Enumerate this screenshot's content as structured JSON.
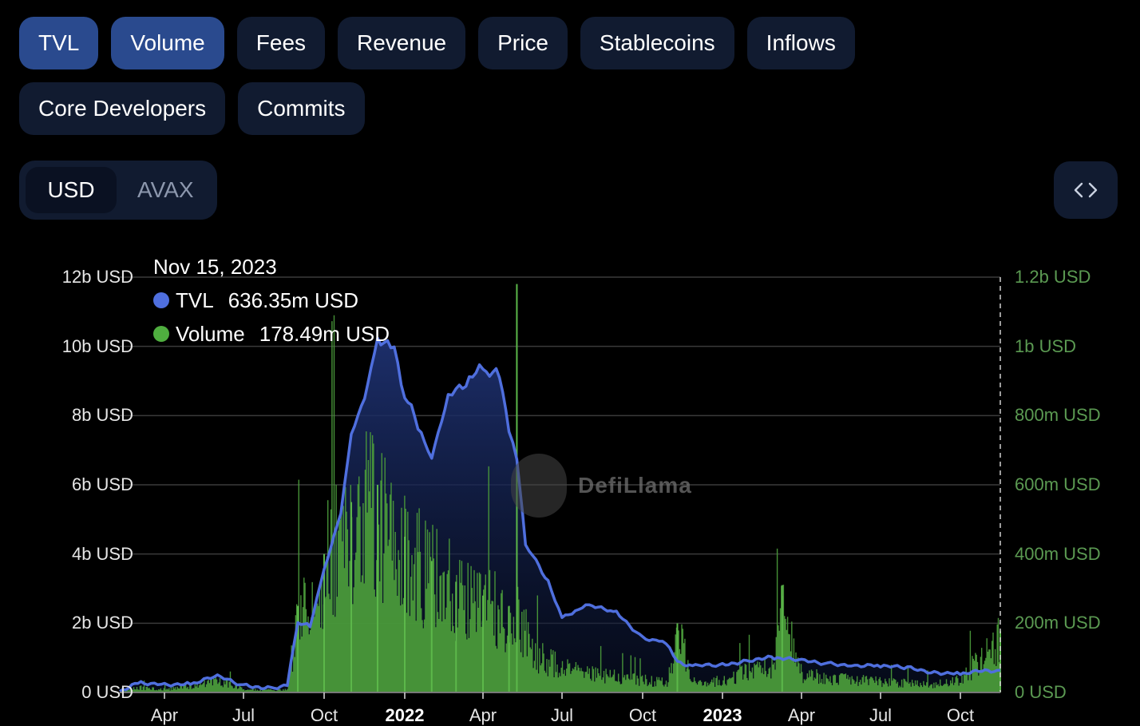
{
  "tabs": [
    {
      "label": "TVL",
      "active": true
    },
    {
      "label": "Volume",
      "active": true
    },
    {
      "label": "Fees",
      "active": false
    },
    {
      "label": "Revenue",
      "active": false
    },
    {
      "label": "Price",
      "active": false
    },
    {
      "label": "Stablecoins",
      "active": false
    },
    {
      "label": "Inflows",
      "active": false
    },
    {
      "label": "Core Developers",
      "active": false
    },
    {
      "label": "Commits",
      "active": false
    }
  ],
  "denomination": {
    "options": [
      "USD",
      "AVAX"
    ],
    "selected": "USD"
  },
  "embed_button": {
    "icon": "code-brackets-icon"
  },
  "tooltip": {
    "date": "Nov 15, 2023",
    "rows": [
      {
        "label": "TVL",
        "value": "636.35m USD",
        "color": "#4f6fde"
      },
      {
        "label": "Volume",
        "value": "178.49m USD",
        "color": "#4fae3f"
      }
    ]
  },
  "watermark": {
    "text": "DefiLlama"
  },
  "colors": {
    "tvl_line": "#4f6fde",
    "tvl_fill_top": "#1e3170",
    "volume_bar": "#4a9a3a",
    "right_axis_text": "#5b9a52",
    "tab_active": "#2a4a8e",
    "tab_inactive": "#111b30"
  },
  "chart_data": {
    "type": "line+bar",
    "title": "",
    "left_axis": {
      "label": "TVL",
      "ticks": [
        "0 USD",
        "2b USD",
        "4b USD",
        "6b USD",
        "8b USD",
        "10b USD",
        "12b USD"
      ],
      "ylim": [
        0,
        12000000000
      ]
    },
    "right_axis": {
      "label": "Volume",
      "ticks": [
        "0 USD",
        "200m USD",
        "400m USD",
        "600m USD",
        "800m USD",
        "1b USD",
        "1.2b USD"
      ],
      "ylim": [
        0,
        1200000000
      ]
    },
    "x_ticks": [
      {
        "label": "Apr",
        "bold": false
      },
      {
        "label": "Jul",
        "bold": false
      },
      {
        "label": "Oct",
        "bold": false
      },
      {
        "label": "2022",
        "bold": true
      },
      {
        "label": "Apr",
        "bold": false
      },
      {
        "label": "Jul",
        "bold": false
      },
      {
        "label": "Oct",
        "bold": false
      },
      {
        "label": "2023",
        "bold": true
      },
      {
        "label": "Apr",
        "bold": false
      },
      {
        "label": "Jul",
        "bold": false
      },
      {
        "label": "Oct",
        "bold": false
      }
    ],
    "x_range": [
      "2021-02",
      "2023-11-15"
    ],
    "grid": true,
    "legend_position": "tooltip top-left",
    "series": [
      {
        "name": "TVL",
        "type": "area-line",
        "unit": "USD (billions)",
        "x": [
          "2021-02",
          "2021-03",
          "2021-04",
          "2021-05",
          "2021-06",
          "2021-07",
          "2021-08",
          "2021-08-20",
          "2021-09",
          "2021-09-15",
          "2021-10",
          "2021-10-20",
          "2021-11",
          "2021-11-20",
          "2021-12",
          "2021-12-20",
          "2022-01",
          "2022-01-20",
          "2022-02",
          "2022-02-20",
          "2022-03",
          "2022-03-20",
          "2022-04",
          "2022-04-20",
          "2022-05",
          "2022-05-10",
          "2022-05-20",
          "2022-06",
          "2022-06-15",
          "2022-07",
          "2022-07-20",
          "2022-08",
          "2022-09",
          "2022-10",
          "2022-10-20",
          "2022-11",
          "2022-11-10",
          "2022-12",
          "2023-01",
          "2023-02",
          "2023-03",
          "2023-04",
          "2023-05",
          "2023-06",
          "2023-07",
          "2023-08",
          "2023-09",
          "2023-10",
          "2023-11-15"
        ],
        "values": [
          0.05,
          0.3,
          0.25,
          0.25,
          0.45,
          0.2,
          0.15,
          0.2,
          2.0,
          1.9,
          3.5,
          5.2,
          7.5,
          8.8,
          10.3,
          9.8,
          8.5,
          7.5,
          6.8,
          8.6,
          8.8,
          9.2,
          9.3,
          9.1,
          7.5,
          6.8,
          4.3,
          3.8,
          3.2,
          2.2,
          2.4,
          2.5,
          2.3,
          1.6,
          1.5,
          1.3,
          0.9,
          0.75,
          0.8,
          0.95,
          1.0,
          0.9,
          0.85,
          0.8,
          0.75,
          0.7,
          0.6,
          0.55,
          0.64
        ]
      },
      {
        "name": "Volume",
        "type": "bar",
        "unit": "USD (millions)",
        "x": [
          "2021-02",
          "2021-03",
          "2021-04",
          "2021-05",
          "2021-06",
          "2021-07",
          "2021-08",
          "2021-08-20",
          "2021-09",
          "2021-10",
          "2021-11",
          "2021-12",
          "2022-01",
          "2022-02",
          "2022-03",
          "2022-04",
          "2022-05",
          "2022-05-10",
          "2022-06",
          "2022-07",
          "2022-08",
          "2022-09",
          "2022-10",
          "2022-11",
          "2022-11-10",
          "2022-12",
          "2023-01",
          "2023-02",
          "2023-03",
          "2023-03-10",
          "2023-04",
          "2023-05",
          "2023-06",
          "2023-07",
          "2023-08",
          "2023-09",
          "2023-10",
          "2023-11-15"
        ],
        "values": [
          10,
          15,
          10,
          20,
          40,
          10,
          8,
          10,
          250,
          400,
          550,
          600,
          450,
          380,
          320,
          280,
          250,
          1180,
          120,
          80,
          60,
          50,
          40,
          30,
          200,
          25,
          40,
          70,
          90,
          310,
          60,
          45,
          40,
          35,
          30,
          25,
          40,
          178.49
        ]
      }
    ],
    "crosshair": {
      "date": "Nov 15, 2023",
      "style": "dashed vertical"
    },
    "annotations": []
  }
}
